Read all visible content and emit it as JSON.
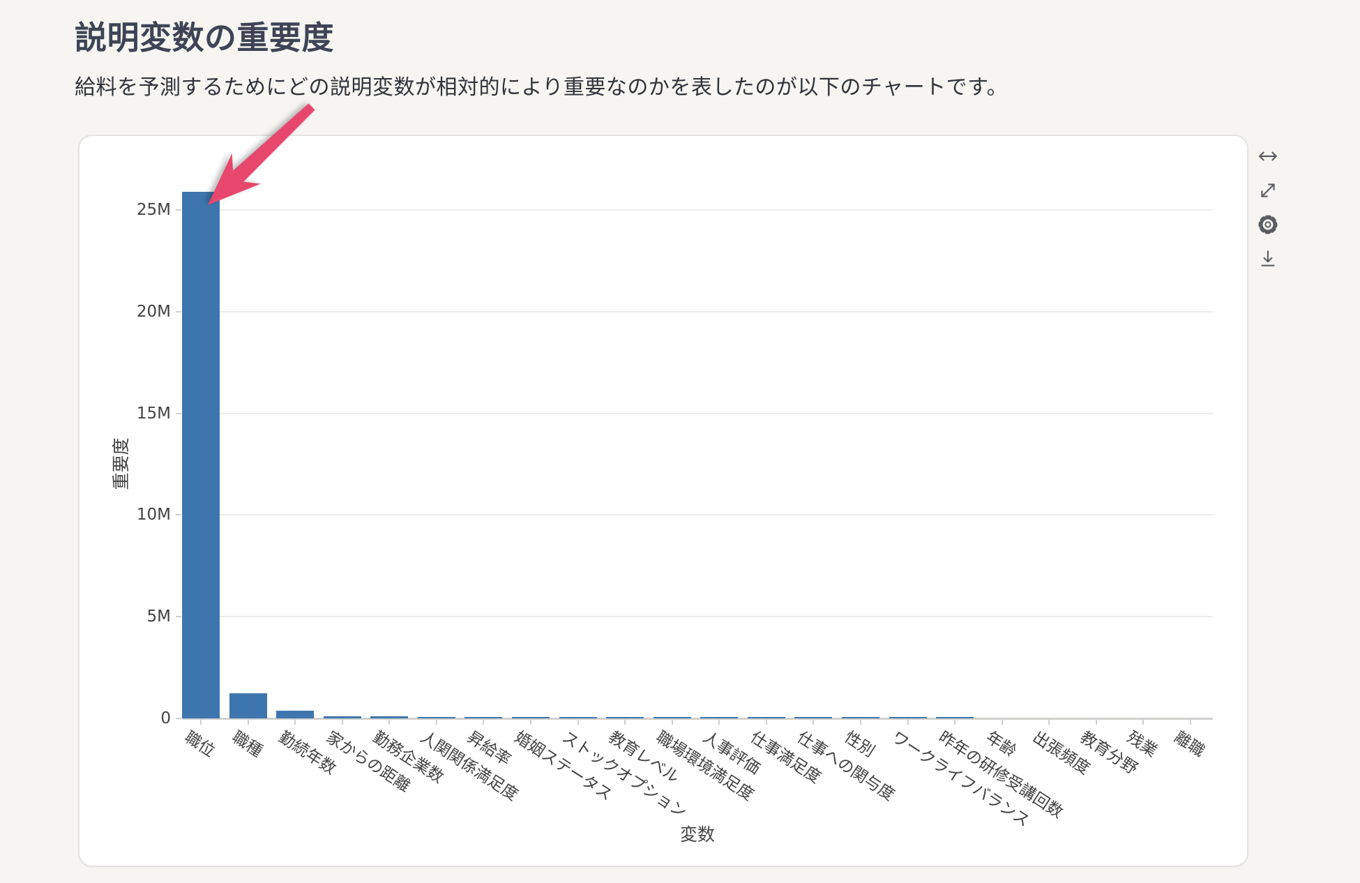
{
  "page": {
    "title": "説明変数の重要度",
    "description": "給料を予測するためにどの説明変数が相対的により重要なのかを表したのが以下のチャートです。"
  },
  "toolbar": {
    "buttons": [
      {
        "icon": "resize-horizontal"
      },
      {
        "icon": "expand-diagonal"
      },
      {
        "icon": "settings-gear"
      },
      {
        "icon": "download"
      }
    ]
  },
  "colors": {
    "bar": "#3d76ae",
    "arrow": "#e8476d",
    "page_background": "#f6f5f1",
    "card_background": "#ffffff"
  },
  "chart_data": {
    "type": "bar",
    "title": "",
    "xlabel": "変数",
    "ylabel": "重要度",
    "categories": [
      "職位",
      "職種",
      "勤続年数",
      "家からの距離",
      "勤務企業数",
      "人関関係満足度",
      "昇給率",
      "婚姻ステータス",
      "ストックオプション",
      "教育レベル",
      "職場環境満足度",
      "人事評価",
      "仕事満足度",
      "仕事への関与度",
      "性別",
      "ワークライフバランス",
      "昨年の研修受講回数",
      "年齢",
      "出張頻度",
      "教育分野",
      "残業",
      "離職"
    ],
    "values": [
      25900000,
      1230000,
      380000,
      100000,
      90000,
      80000,
      80000,
      70000,
      70000,
      70000,
      70000,
      70000,
      60000,
      60000,
      60000,
      60000,
      60000,
      12000,
      10000,
      8000,
      6000,
      5000
    ],
    "yticks": {
      "values": [
        0,
        5000000,
        10000000,
        15000000,
        20000000,
        25000000
      ],
      "labels": [
        "0",
        "5M",
        "10M",
        "15M",
        "20M",
        "25M"
      ]
    },
    "ylim": [
      0,
      26000000
    ],
    "grid": true,
    "legend": "none",
    "bar_color": "#3d76ae",
    "annotation": {
      "type": "arrow",
      "color": "#e8476d",
      "points_at": "職位"
    }
  }
}
